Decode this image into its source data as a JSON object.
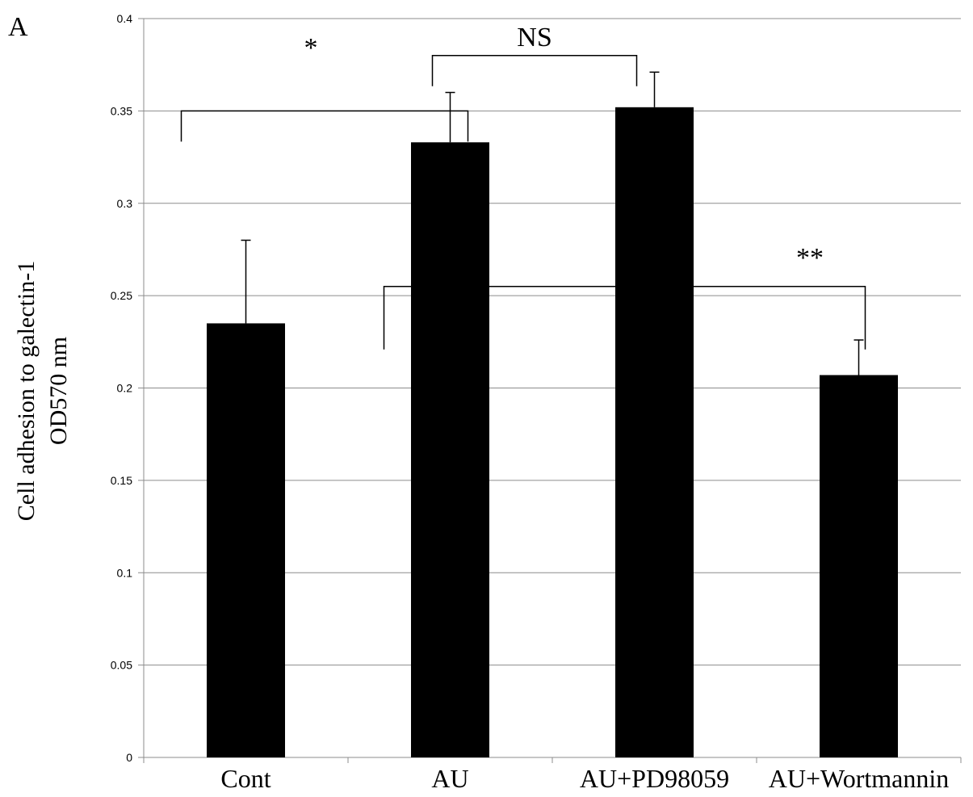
{
  "panel_label": "A",
  "chart_data": {
    "type": "bar",
    "categories": [
      "Cont",
      "AU",
      "AU+PD98059",
      "AU+Wortmannin"
    ],
    "values": [
      0.235,
      0.333,
      0.352,
      0.207
    ],
    "error_upper": [
      0.28,
      0.36,
      0.371,
      0.226
    ],
    "ylabel_line1": "Cell adhesion to galectin-1",
    "ylabel_line2": "OD570 nm",
    "ylim": [
      0,
      0.4
    ],
    "yticks": [
      "0",
      "0.05",
      "0.1",
      "0.15",
      "0.2",
      "0.25",
      "0.3",
      "0.35",
      "0.4"
    ],
    "grid": true,
    "bar_color": "#000000",
    "significance": [
      {
        "label": "*",
        "from": 0,
        "to": 1,
        "level": 0.35
      },
      {
        "label": "NS",
        "from": 1,
        "to": 2,
        "level": 0.38
      },
      {
        "label": "**",
        "from": 1,
        "to": 3,
        "level": 0.255
      }
    ]
  }
}
